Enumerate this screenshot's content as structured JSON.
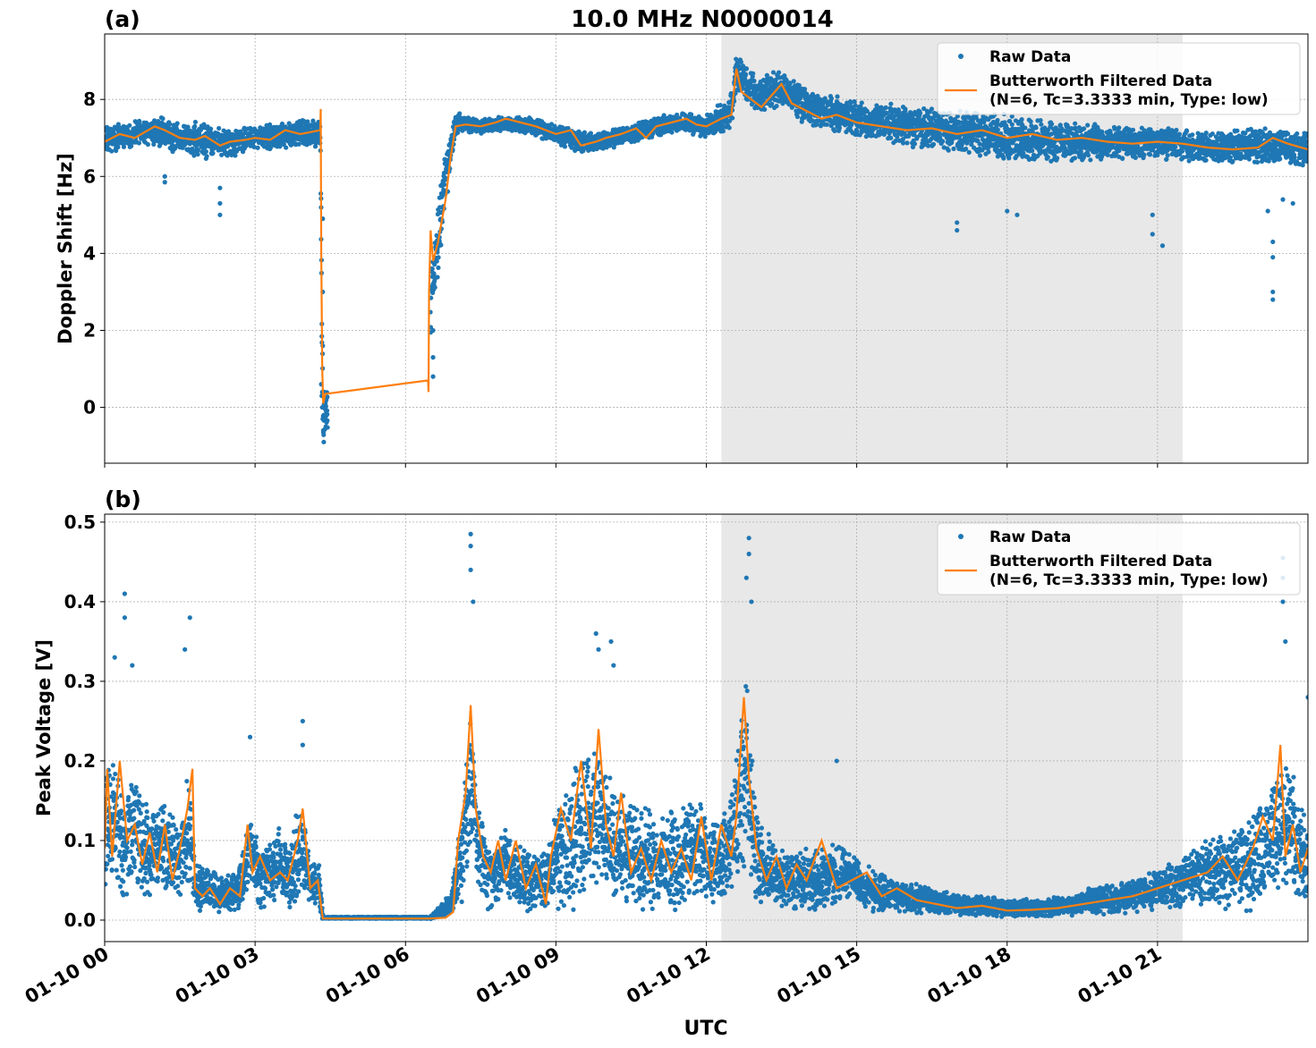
{
  "figure": {
    "title": "10.0 MHz N0000014",
    "xlabel": "UTC",
    "x_tick_labels": [
      "01-10 00",
      "01-10 03",
      "01-10 06",
      "01-10 09",
      "01-10 12",
      "01-10 15",
      "01-10 18",
      "01-10 21"
    ],
    "colors": {
      "raw": "#1f77b4",
      "filtered": "#ff7f0e",
      "shade": "#e8e8e8",
      "grid": "#b0b0b0"
    }
  },
  "chart_data": [
    {
      "type": "scatter",
      "panel_label": "(a)",
      "ylabel": "Doppler Shift [Hz]",
      "x_unit": "hours UTC since 01-10 00",
      "xlim": [
        0,
        24
      ],
      "ylim": [
        -1.45,
        9.7
      ],
      "y_ticks": [
        0,
        2,
        4,
        6,
        8
      ],
      "y_tick_labels": [
        "0",
        "2",
        "4",
        "6",
        "8"
      ],
      "grid": true,
      "legend_position": "top-right",
      "legend": {
        "raw": "Raw Data",
        "filtered_line1": "Butterworth Filtered Data",
        "filtered_line2": "(N=6, Tc=3.3333 min, Type: low)"
      },
      "shaded_interval": [
        12.3,
        21.5
      ],
      "series": [
        {
          "name": "Raw Data",
          "mode": "points",
          "band": {
            "x": [
              0,
              0.5,
              1,
              1.5,
              2,
              2.5,
              3,
              3.5,
              4,
              4.3,
              4.35,
              4.4,
              6.5,
              6.7,
              7,
              7.5,
              8,
              8.5,
              9,
              9.5,
              10,
              10.5,
              11,
              11.5,
              12,
              12.5,
              12.6,
              13,
              13.5,
              14,
              15,
              16,
              17,
              18,
              19,
              20,
              21,
              22,
              23,
              24
            ],
            "center": [
              7.0,
              7.05,
              7.2,
              7.0,
              6.9,
              6.85,
              7.0,
              7.05,
              7.15,
              7.1,
              0.0,
              -0.2,
              2.8,
              5.0,
              7.4,
              7.3,
              7.4,
              7.3,
              7.1,
              6.9,
              6.95,
              7.1,
              7.3,
              7.4,
              7.3,
              7.7,
              8.7,
              8.1,
              8.3,
              7.8,
              7.5,
              7.3,
              7.2,
              7.0,
              6.9,
              6.9,
              6.85,
              6.75,
              6.8,
              6.7
            ],
            "spread": [
              0.4,
              0.35,
              0.4,
              0.45,
              0.5,
              0.4,
              0.3,
              0.35,
              0.35,
              0.4,
              0.9,
              0.6,
              1.0,
              1.2,
              0.3,
              0.2,
              0.2,
              0.25,
              0.25,
              0.3,
              0.25,
              0.25,
              0.3,
              0.25,
              0.3,
              0.5,
              0.45,
              0.5,
              0.5,
              0.5,
              0.5,
              0.55,
              0.6,
              0.65,
              0.55,
              0.5,
              0.45,
              0.45,
              0.5,
              0.5
            ]
          },
          "outliers": [
            [
              1.2,
              5.85
            ],
            [
              1.2,
              6.0
            ],
            [
              2.3,
              5.0
            ],
            [
              2.3,
              5.3
            ],
            [
              2.3,
              5.7
            ],
            [
              4.35,
              4.9
            ],
            [
              4.35,
              3.0
            ],
            [
              4.35,
              1.6
            ],
            [
              6.55,
              2.0
            ],
            [
              6.55,
              1.3
            ],
            [
              6.55,
              0.8
            ],
            [
              17.0,
              4.8
            ],
            [
              17.0,
              4.6
            ],
            [
              18.0,
              5.1
            ],
            [
              18.2,
              5.0
            ],
            [
              20.9,
              5.0
            ],
            [
              20.9,
              4.5
            ],
            [
              21.1,
              4.2
            ],
            [
              23.2,
              5.1
            ],
            [
              23.3,
              4.3
            ],
            [
              23.3,
              3.9
            ],
            [
              23.3,
              3.0
            ],
            [
              23.3,
              2.8
            ],
            [
              23.5,
              5.4
            ],
            [
              23.7,
              5.3
            ]
          ],
          "gap_points": [
            [
              4.32,
              0.6
            ],
            [
              4.33,
              0.3
            ],
            [
              4.34,
              0.0
            ],
            [
              4.35,
              -0.3
            ],
            [
              4.36,
              -0.6
            ],
            [
              4.37,
              -0.9
            ],
            [
              4.38,
              0.4
            ],
            [
              4.4,
              0.1
            ],
            [
              4.41,
              -0.5
            ],
            [
              4.42,
              0.2
            ]
          ]
        },
        {
          "name": "Butterworth Filtered Data",
          "mode": "line",
          "x": [
            0,
            0.3,
            0.6,
            1.0,
            1.2,
            1.5,
            1.8,
            2.0,
            2.3,
            2.5,
            2.8,
            3.0,
            3.3,
            3.6,
            3.9,
            4.1,
            4.3,
            4.31,
            4.32,
            4.34,
            4.36,
            4.4,
            6.45,
            6.46,
            6.47,
            6.5,
            6.55,
            6.65,
            6.8,
            6.9,
            7.0,
            7.2,
            7.5,
            7.8,
            8.0,
            8.3,
            8.6,
            8.8,
            9.0,
            9.3,
            9.5,
            9.8,
            10.0,
            10.3,
            10.6,
            10.8,
            11.0,
            11.3,
            11.6,
            11.8,
            12.0,
            12.3,
            12.5,
            12.6,
            12.7,
            12.9,
            13.1,
            13.3,
            13.5,
            13.7,
            14.0,
            14.3,
            14.6,
            15.0,
            15.5,
            16.0,
            16.5,
            17.0,
            17.5,
            18.0,
            18.5,
            19.0,
            19.5,
            20.0,
            20.5,
            21.0,
            21.5,
            22.0,
            22.5,
            23.0,
            23.3,
            23.6,
            24.0
          ],
          "y": [
            6.9,
            7.1,
            7.0,
            7.3,
            7.2,
            7.0,
            6.95,
            7.05,
            6.8,
            6.9,
            6.95,
            7.0,
            6.95,
            7.2,
            7.1,
            7.15,
            7.2,
            7.75,
            4.0,
            1.0,
            0.1,
            0.35,
            0.7,
            0.4,
            3.0,
            4.6,
            3.8,
            4.3,
            5.4,
            6.5,
            7.3,
            7.35,
            7.3,
            7.4,
            7.5,
            7.4,
            7.3,
            7.2,
            7.1,
            7.2,
            6.8,
            6.9,
            7.0,
            7.1,
            7.25,
            7.0,
            7.3,
            7.4,
            7.5,
            7.35,
            7.3,
            7.5,
            7.6,
            8.8,
            8.2,
            8.0,
            7.8,
            8.1,
            8.4,
            7.9,
            7.7,
            7.5,
            7.6,
            7.4,
            7.3,
            7.2,
            7.25,
            7.1,
            7.2,
            7.0,
            7.1,
            6.95,
            7.0,
            6.9,
            6.85,
            6.9,
            6.85,
            6.75,
            6.7,
            6.75,
            7.0,
            6.85,
            6.7
          ]
        }
      ]
    },
    {
      "type": "scatter",
      "panel_label": "(b)",
      "ylabel": "Peak Voltage [V]",
      "x_unit": "hours UTC since 01-10 00",
      "xlim": [
        0,
        24
      ],
      "ylim": [
        -0.027,
        0.51
      ],
      "y_ticks": [
        0.0,
        0.1,
        0.2,
        0.3,
        0.4,
        0.5
      ],
      "y_tick_labels": [
        "0.0",
        "0.1",
        "0.2",
        "0.3",
        "0.4",
        "0.5"
      ],
      "grid": true,
      "legend_position": "top-right",
      "legend": {
        "raw": "Raw Data",
        "filtered_line1": "Butterworth Filtered Data",
        "filtered_line2": "(N=6, Tc=3.3333 min, Type: low)"
      },
      "shaded_interval": [
        12.3,
        21.5
      ],
      "series": [
        {
          "name": "Raw Data",
          "mode": "points",
          "band": {
            "x": [
              0,
              0.2,
              0.4,
              0.6,
              0.9,
              1.2,
              1.5,
              1.7,
              1.8,
              2.1,
              2.4,
              2.7,
              2.9,
              3.1,
              3.4,
              3.7,
              3.9,
              4.1,
              4.3,
              4.35,
              6.5,
              6.9,
              7.1,
              7.3,
              7.5,
              7.7,
              8.0,
              8.4,
              8.8,
              9.0,
              9.3,
              9.6,
              9.8,
              10.1,
              10.4,
              10.7,
              11.0,
              11.4,
              11.8,
              12.1,
              12.4,
              12.6,
              12.8,
              13.0,
              13.3,
              13.7,
              14.2,
              14.7,
              15.2,
              15.8,
              16.4,
              17.0,
              17.5,
              18.0,
              18.6,
              19.2,
              19.8,
              20.4,
              21.0,
              21.5,
              22.0,
              22.5,
              23.0,
              23.3,
              23.6,
              24.0
            ],
            "center": [
              0.11,
              0.13,
              0.09,
              0.12,
              0.08,
              0.1,
              0.07,
              0.12,
              0.04,
              0.04,
              0.03,
              0.04,
              0.09,
              0.05,
              0.07,
              0.06,
              0.09,
              0.05,
              0.04,
              0.002,
              0.003,
              0.02,
              0.07,
              0.18,
              0.08,
              0.06,
              0.07,
              0.05,
              0.05,
              0.08,
              0.1,
              0.12,
              0.14,
              0.1,
              0.09,
              0.08,
              0.07,
              0.08,
              0.09,
              0.07,
              0.08,
              0.12,
              0.19,
              0.08,
              0.06,
              0.05,
              0.05,
              0.06,
              0.04,
              0.03,
              0.025,
              0.02,
              0.018,
              0.015,
              0.015,
              0.018,
              0.025,
              0.03,
              0.04,
              0.05,
              0.06,
              0.06,
              0.08,
              0.1,
              0.12,
              0.07
            ],
            "spread": [
              0.08,
              0.09,
              0.07,
              0.07,
              0.06,
              0.06,
              0.05,
              0.09,
              0.03,
              0.03,
              0.025,
              0.03,
              0.06,
              0.04,
              0.05,
              0.05,
              0.06,
              0.04,
              0.03,
              0.002,
              0.002,
              0.015,
              0.06,
              0.1,
              0.06,
              0.05,
              0.05,
              0.04,
              0.04,
              0.07,
              0.09,
              0.1,
              0.1,
              0.08,
              0.07,
              0.07,
              0.06,
              0.07,
              0.07,
              0.06,
              0.06,
              0.09,
              0.12,
              0.06,
              0.045,
              0.04,
              0.045,
              0.04,
              0.03,
              0.022,
              0.018,
              0.015,
              0.013,
              0.012,
              0.012,
              0.014,
              0.018,
              0.022,
              0.028,
              0.035,
              0.045,
              0.05,
              0.07,
              0.08,
              0.09,
              0.06
            ]
          },
          "outliers": [
            [
              0.4,
              0.41
            ],
            [
              0.4,
              0.38
            ],
            [
              0.2,
              0.33
            ],
            [
              0.55,
              0.32
            ],
            [
              1.7,
              0.38
            ],
            [
              1.6,
              0.34
            ],
            [
              2.9,
              0.23
            ],
            [
              3.95,
              0.25
            ],
            [
              3.95,
              0.22
            ],
            [
              7.3,
              0.485
            ],
            [
              7.3,
              0.47
            ],
            [
              7.3,
              0.44
            ],
            [
              7.35,
              0.4
            ],
            [
              9.8,
              0.36
            ],
            [
              9.85,
              0.34
            ],
            [
              10.1,
              0.35
            ],
            [
              10.15,
              0.32
            ],
            [
              12.85,
              0.48
            ],
            [
              12.85,
              0.46
            ],
            [
              12.8,
              0.43
            ],
            [
              12.9,
              0.4
            ],
            [
              14.6,
              0.2
            ],
            [
              23.5,
              0.455
            ],
            [
              23.5,
              0.43
            ],
            [
              23.5,
              0.4
            ],
            [
              23.55,
              0.35
            ],
            [
              24.0,
              0.28
            ]
          ]
        },
        {
          "name": "Butterworth Filtered Data",
          "mode": "line",
          "x": [
            0,
            0.05,
            0.15,
            0.3,
            0.45,
            0.6,
            0.75,
            0.9,
            1.05,
            1.2,
            1.35,
            1.5,
            1.65,
            1.75,
            1.8,
            1.95,
            2.1,
            2.3,
            2.5,
            2.7,
            2.85,
            2.95,
            3.1,
            3.3,
            3.5,
            3.65,
            3.85,
            3.95,
            4.1,
            4.25,
            4.35,
            4.4,
            6.5,
            6.8,
            6.95,
            7.05,
            7.2,
            7.3,
            7.4,
            7.55,
            7.7,
            7.85,
            8.0,
            8.2,
            8.4,
            8.6,
            8.8,
            8.9,
            9.1,
            9.3,
            9.5,
            9.7,
            9.85,
            10.0,
            10.15,
            10.3,
            10.5,
            10.7,
            10.9,
            11.1,
            11.3,
            11.5,
            11.7,
            11.9,
            12.1,
            12.3,
            12.5,
            12.6,
            12.75,
            12.85,
            13.0,
            13.2,
            13.4,
            13.6,
            13.8,
            14.0,
            14.3,
            14.6,
            14.9,
            15.2,
            15.5,
            15.8,
            16.2,
            16.6,
            17.0,
            17.5,
            18.0,
            18.5,
            19.0,
            19.5,
            20.0,
            20.5,
            21.0,
            21.5,
            22.0,
            22.3,
            22.6,
            22.9,
            23.1,
            23.3,
            23.45,
            23.55,
            23.7,
            23.85,
            24.0
          ],
          "y": [
            0.09,
            0.19,
            0.08,
            0.2,
            0.1,
            0.12,
            0.07,
            0.11,
            0.06,
            0.12,
            0.05,
            0.09,
            0.14,
            0.19,
            0.04,
            0.03,
            0.04,
            0.02,
            0.04,
            0.03,
            0.12,
            0.06,
            0.08,
            0.05,
            0.06,
            0.05,
            0.1,
            0.14,
            0.04,
            0.05,
            0.002,
            0.002,
            0.002,
            0.003,
            0.01,
            0.1,
            0.16,
            0.27,
            0.14,
            0.08,
            0.06,
            0.1,
            0.05,
            0.1,
            0.04,
            0.07,
            0.02,
            0.08,
            0.14,
            0.1,
            0.2,
            0.09,
            0.24,
            0.12,
            0.08,
            0.16,
            0.06,
            0.09,
            0.05,
            0.1,
            0.06,
            0.09,
            0.05,
            0.13,
            0.05,
            0.12,
            0.08,
            0.13,
            0.28,
            0.18,
            0.09,
            0.05,
            0.08,
            0.04,
            0.07,
            0.05,
            0.1,
            0.04,
            0.05,
            0.06,
            0.03,
            0.04,
            0.025,
            0.02,
            0.015,
            0.018,
            0.012,
            0.013,
            0.015,
            0.02,
            0.025,
            0.03,
            0.04,
            0.05,
            0.06,
            0.08,
            0.05,
            0.09,
            0.13,
            0.1,
            0.22,
            0.08,
            0.12,
            0.06,
            0.09
          ]
        }
      ]
    }
  ]
}
